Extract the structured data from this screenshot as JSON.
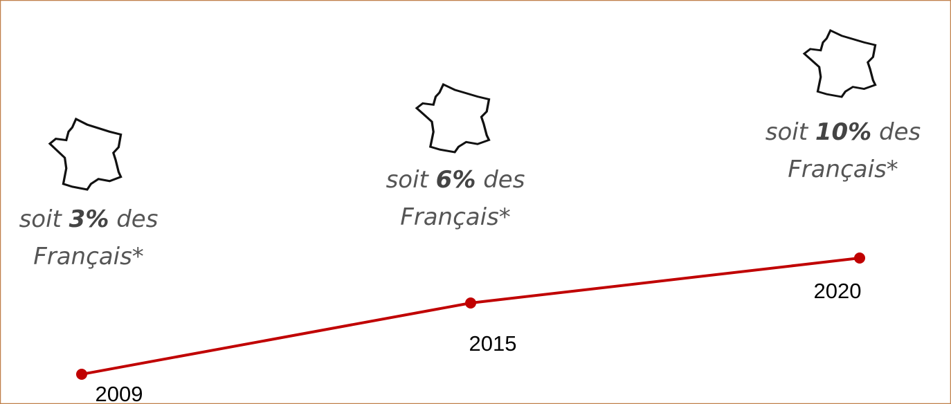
{
  "steps": [
    {
      "year": "2009",
      "prefix": "soit",
      "value": "3%",
      "suffix": "des",
      "line2": "Français*"
    },
    {
      "year": "2015",
      "prefix": "soit",
      "value": "6%",
      "suffix": "des",
      "line2": "Français*"
    },
    {
      "year": "2020",
      "prefix": "soit",
      "value": "10%",
      "suffix": "des",
      "line2": "Français*"
    }
  ]
}
